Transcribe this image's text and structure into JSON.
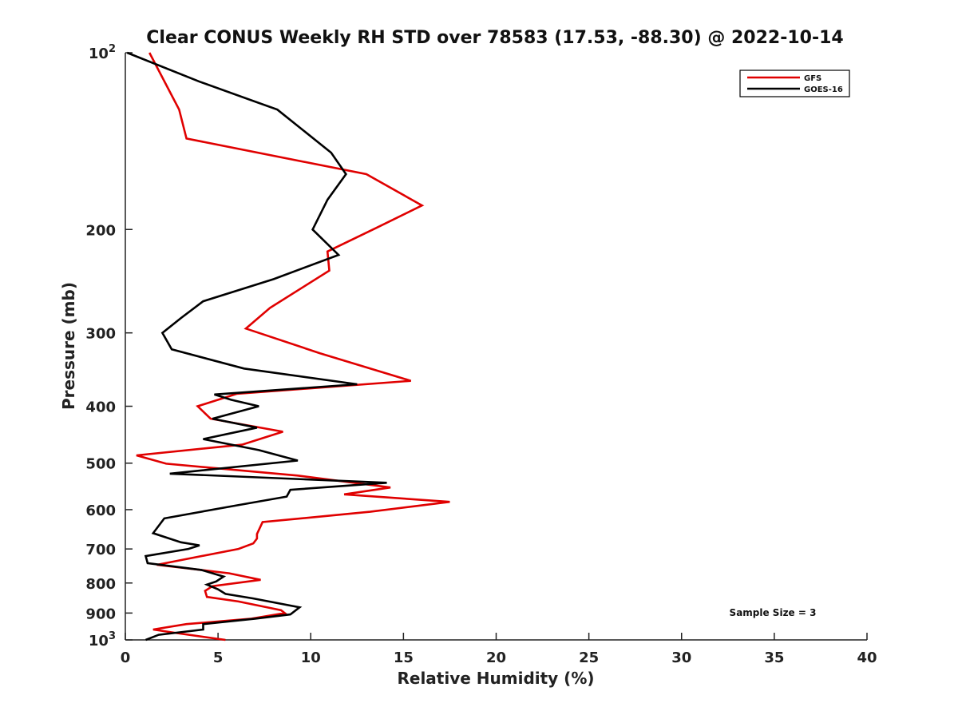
{
  "chart_data": {
    "type": "line",
    "title": "Clear CONUS Weekly RH STD over 78583 (17.53, -88.30) @ 2022-10-14",
    "xlabel": "Relative Humidity (%)",
    "ylabel": "Pressure (mb)",
    "xlim": [
      0,
      40
    ],
    "ylim": [
      100,
      1000
    ],
    "y_scale": "log",
    "y_reversed": true,
    "grid": false,
    "legend_position": "top-right",
    "x_ticks": [
      "0",
      "5",
      "10",
      "15",
      "20",
      "25",
      "30",
      "35",
      "40"
    ],
    "x_tick_values": [
      0,
      5,
      10,
      15,
      20,
      25,
      30,
      35,
      40
    ],
    "y_ticks": [
      {
        "value": 100,
        "label": "10",
        "exp": "2"
      },
      {
        "value": 200,
        "label": "200",
        "exp": ""
      },
      {
        "value": 300,
        "label": "300",
        "exp": ""
      },
      {
        "value": 400,
        "label": "400",
        "exp": ""
      },
      {
        "value": 500,
        "label": "500",
        "exp": ""
      },
      {
        "value": 600,
        "label": "600",
        "exp": ""
      },
      {
        "value": 700,
        "label": "700",
        "exp": ""
      },
      {
        "value": 800,
        "label": "800",
        "exp": ""
      },
      {
        "value": 900,
        "label": "900",
        "exp": ""
      },
      {
        "value": 1000,
        "label": "10",
        "exp": "3"
      }
    ],
    "annotation": "Sample Size = 3",
    "series": [
      {
        "name": "GFS",
        "color": "#e00000",
        "points": [
          [
            1.3,
            100
          ],
          [
            2.9,
            125
          ],
          [
            3.3,
            140
          ],
          [
            13.0,
            161
          ],
          [
            16.0,
            182
          ],
          [
            13.5,
            199
          ],
          [
            10.9,
            218
          ],
          [
            11.0,
            235
          ],
          [
            7.8,
            272
          ],
          [
            6.5,
            295
          ],
          [
            10.5,
            325
          ],
          [
            15.4,
            362
          ],
          [
            6.0,
            381
          ],
          [
            3.9,
            400
          ],
          [
            4.6,
            420
          ],
          [
            8.5,
            442
          ],
          [
            6.3,
            465
          ],
          [
            0.6,
            485
          ],
          [
            2.2,
            501
          ],
          [
            9.3,
            525
          ],
          [
            14.3,
            550
          ],
          [
            11.8,
            565
          ],
          [
            17.5,
            582
          ],
          [
            13.2,
            605
          ],
          [
            7.4,
            630
          ],
          [
            7.1,
            660
          ],
          [
            7.1,
            672
          ],
          [
            6.9,
            685
          ],
          [
            6.1,
            700
          ],
          [
            1.7,
            745
          ],
          [
            5.6,
            770
          ],
          [
            7.3,
            790
          ],
          [
            4.7,
            810
          ],
          [
            4.3,
            825
          ],
          [
            4.4,
            845
          ],
          [
            6.1,
            860
          ],
          [
            8.4,
            890
          ],
          [
            8.6,
            900
          ],
          [
            6.8,
            920
          ],
          [
            3.3,
            940
          ],
          [
            1.5,
            960
          ],
          [
            2.9,
            975
          ],
          [
            5.4,
            1000
          ]
        ]
      },
      {
        "name": "GOES-16",
        "color": "#000000",
        "points": [
          [
            0.1,
            100
          ],
          [
            4.0,
            112
          ],
          [
            8.2,
            125
          ],
          [
            11.1,
            148
          ],
          [
            11.9,
            161
          ],
          [
            10.9,
            178
          ],
          [
            10.1,
            200
          ],
          [
            11.5,
            221
          ],
          [
            8.0,
            243
          ],
          [
            4.2,
            265
          ],
          [
            3.0,
            283
          ],
          [
            2.0,
            300
          ],
          [
            2.5,
            320
          ],
          [
            6.4,
            345
          ],
          [
            12.5,
            367
          ],
          [
            4.8,
            382
          ],
          [
            5.7,
            390
          ],
          [
            7.2,
            400
          ],
          [
            4.7,
            420
          ],
          [
            7.1,
            435
          ],
          [
            4.2,
            455
          ],
          [
            7.2,
            475
          ],
          [
            9.3,
            495
          ],
          [
            2.4,
            521
          ],
          [
            14.1,
            540
          ],
          [
            8.9,
            555
          ],
          [
            8.7,
            570
          ],
          [
            6.0,
            590
          ],
          [
            2.1,
            621
          ],
          [
            1.5,
            658
          ],
          [
            3.0,
            682
          ],
          [
            4.0,
            690
          ],
          [
            3.4,
            700
          ],
          [
            1.1,
            720
          ],
          [
            1.2,
            740
          ],
          [
            4.1,
            760
          ],
          [
            5.3,
            780
          ],
          [
            4.9,
            795
          ],
          [
            4.4,
            805
          ],
          [
            5.0,
            820
          ],
          [
            5.4,
            835
          ],
          [
            6.9,
            850
          ],
          [
            9.4,
            880
          ],
          [
            8.9,
            905
          ],
          [
            7.0,
            920
          ],
          [
            4.2,
            940
          ],
          [
            4.2,
            960
          ],
          [
            1.8,
            980
          ],
          [
            1.1,
            1000
          ]
        ]
      }
    ]
  }
}
